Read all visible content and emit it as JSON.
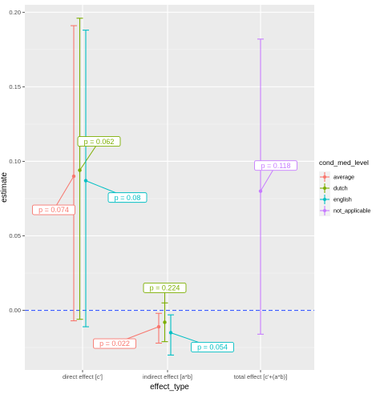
{
  "chart_data": {
    "type": "errorbar-scatter",
    "xlabel": "effect_type",
    "ylabel": "estimate",
    "categories": [
      "direct effect [c']",
      "indirect effect [a*b]",
      "total effect [c'+(a*b)]"
    ],
    "ylim": [
      -0.04,
      0.205
    ],
    "yticks": [
      0.0,
      0.05,
      0.1,
      0.15,
      0.2
    ],
    "ytick_labels": [
      "0.00",
      "0.05",
      "0.10",
      "0.15",
      "0.20"
    ],
    "reference_line": {
      "y": 0,
      "style": "dashed",
      "color": "#3b5bff"
    },
    "legend": {
      "title": "cond_med_level",
      "position": "right"
    },
    "series": [
      {
        "name": "average",
        "color": "#F8766D",
        "points": [
          {
            "category": "direct effect [c']",
            "estimate": 0.09,
            "lower": -0.007,
            "upper": 0.191,
            "p_label": "p = 0.074"
          },
          {
            "category": "indirect effect [a*b]",
            "estimate": -0.011,
            "lower": -0.022,
            "upper": -0.002,
            "p_label": "p = 0.022"
          }
        ]
      },
      {
        "name": "dutch",
        "color": "#7CAE00",
        "points": [
          {
            "category": "direct effect [c']",
            "estimate": 0.094,
            "lower": -0.006,
            "upper": 0.196,
            "p_label": "p = 0.062"
          },
          {
            "category": "indirect effect [a*b]",
            "estimate": -0.008,
            "lower": -0.021,
            "upper": 0.005,
            "p_label": "p = 0.224"
          }
        ]
      },
      {
        "name": "english",
        "color": "#00BFC4",
        "points": [
          {
            "category": "direct effect [c']",
            "estimate": 0.087,
            "lower": -0.011,
            "upper": 0.188,
            "p_label": "p = 0.08"
          },
          {
            "category": "indirect effect [a*b]",
            "estimate": -0.015,
            "lower": -0.03,
            "upper": -0.003,
            "p_label": "p = 0.054"
          }
        ]
      },
      {
        "name": "not_applicable",
        "color": "#C77CFF",
        "points": [
          {
            "category": "total effect [c'+(a*b)]",
            "estimate": 0.08,
            "lower": -0.016,
            "upper": 0.182,
            "p_label": "p = 0.118"
          }
        ]
      }
    ]
  }
}
